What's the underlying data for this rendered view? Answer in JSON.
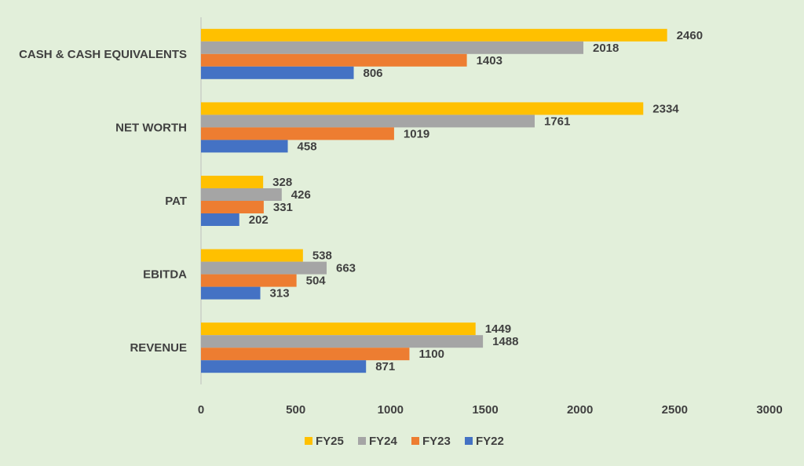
{
  "chart_data": {
    "type": "bar",
    "orientation": "horizontal",
    "categories": [
      "CASH & CASH EQUIVALENTS",
      "NET WORTH",
      "PAT",
      "EBITDA",
      "REVENUE"
    ],
    "series": [
      {
        "name": "FY25",
        "color": "#ffc000",
        "values": [
          2460,
          2334,
          328,
          538,
          1449
        ]
      },
      {
        "name": "FY24",
        "color": "#a5a5a5",
        "values": [
          2018,
          1761,
          426,
          663,
          1488
        ]
      },
      {
        "name": "FY23",
        "color": "#ed7d31",
        "values": [
          1403,
          1019,
          331,
          504,
          1100
        ]
      },
      {
        "name": "FY22",
        "color": "#4472c4",
        "values": [
          806,
          458,
          202,
          313,
          871
        ]
      }
    ],
    "xlim": [
      0,
      3000
    ],
    "xticks": [
      0,
      500,
      1000,
      1500,
      2000,
      2500,
      3000
    ],
    "title": "",
    "xlabel": "",
    "ylabel": "",
    "grid": false,
    "legend_position": "bottom",
    "background_color": "#e2efda"
  }
}
